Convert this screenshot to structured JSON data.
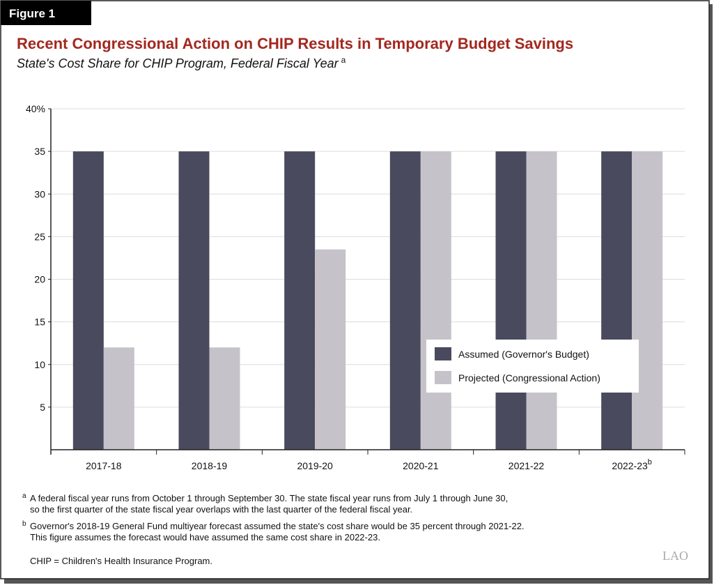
{
  "chart_data": {
    "type": "bar",
    "figure_label": "Figure 1",
    "title": "Recent Congressional Action on CHIP Results in Temporary Budget Savings",
    "subtitle": "State's Cost Share for CHIP Program, Federal Fiscal Year",
    "subtitle_superscript": "a",
    "categories": [
      "2017-18",
      "2018-19",
      "2019-20",
      "2020-21",
      "2021-22",
      "2022-23"
    ],
    "category_superscripts": [
      null,
      null,
      null,
      null,
      null,
      "b"
    ],
    "series": [
      {
        "name": "Assumed (Governor's Budget)",
        "color": "#4a4a5e",
        "values": [
          35,
          35,
          35,
          35,
          35,
          35
        ]
      },
      {
        "name": "Projected (Congressional Action)",
        "color": "#c5c3c9",
        "values": [
          12,
          12,
          23.5,
          35,
          35,
          35
        ]
      }
    ],
    "ylim": [
      0,
      40
    ],
    "yticks": [
      {
        "value": 40,
        "label": "40%"
      },
      35,
      30,
      25,
      20,
      15,
      10,
      5
    ],
    "grid": true,
    "legend_position": "lower right",
    "footnotes": [
      {
        "mark": "a",
        "lines": [
          "A federal fiscal year runs from October 1 through September 30. The state fiscal year runs from July 1 through June 30,",
          "so the first quarter of the state fiscal year overlaps with the last quarter of the federal fiscal year."
        ]
      },
      {
        "mark": "b",
        "lines": [
          "Governor's 2018-19 General Fund multiyear forecast assumed the state's cost share would be 35 percent through 2021-22.",
          "This figure assumes the forecast would have assumed the same cost share in 2022-23."
        ]
      }
    ],
    "abbreviation_note": "CHIP = Children's Health Insurance Program.",
    "source_logo": "LAO"
  }
}
